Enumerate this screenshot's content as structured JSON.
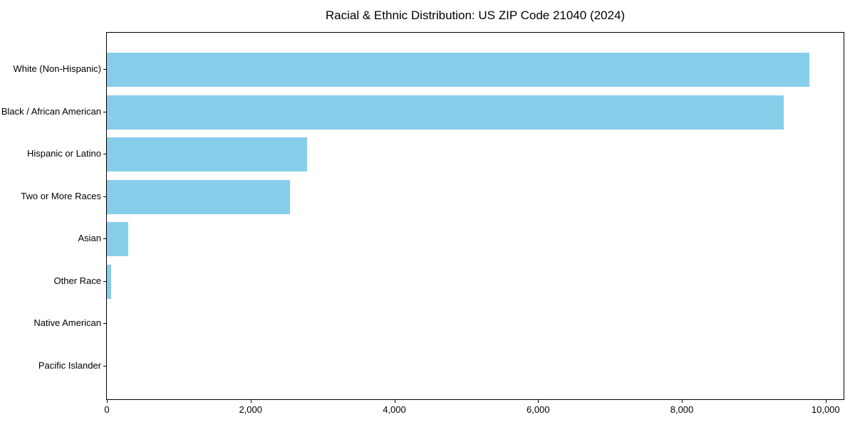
{
  "title": "Racial & Ethnic Distribution: US ZIP Code 21040 (2024)",
  "chart_data": {
    "type": "bar",
    "orientation": "horizontal",
    "title": "Racial & Ethnic Distribution: US ZIP Code 21040 (2024)",
    "categories": [
      "White (Non-Hispanic)",
      "Black / African American",
      "Hispanic or Latino",
      "Two or More Races",
      "Asian",
      "Other Race",
      "Native American",
      "Pacific Islander"
    ],
    "values": [
      9770,
      9420,
      2790,
      2550,
      295,
      60,
      0,
      0
    ],
    "xlabel": "",
    "ylabel": "",
    "xlim": [
      0,
      10250
    ],
    "xticks": [
      0,
      2000,
      4000,
      6000,
      8000,
      10000
    ],
    "xtick_labels": [
      "0",
      "2,000",
      "4,000",
      "6,000",
      "8,000",
      "10,000"
    ],
    "bar_color": "#87CEEB",
    "grid": false,
    "legend": null,
    "background_color": "#ffffff",
    "spine_color": "#000000"
  }
}
